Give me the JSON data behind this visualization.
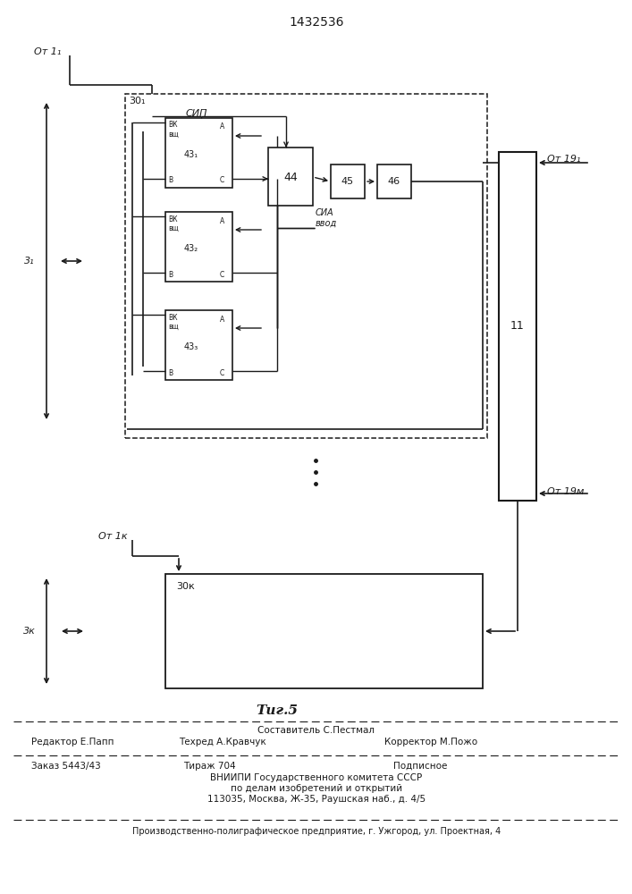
{
  "title": "1432536",
  "fig_label": "Τиг.5",
  "bg_color": "#ffffff",
  "line_color": "#1a1a1a",
  "top_label": "От 1₁",
  "label_3_1": "3₁",
  "label_30_1": "30₁",
  "label_SIP": "СИП",
  "label_SIA": "СИА",
  "label_vvod": "ввод",
  "label_44": "44",
  "label_45": "45",
  "label_46": "46",
  "label_11": "11",
  "label_19_1": "От 19₁",
  "label_19_m": "От 19м",
  "label_1k": "От 1к",
  "label_30k": "30к",
  "label_3k": "3к",
  "footer_sestavitel": "Составитель С.Пестмал",
  "footer_redaktor": "Редактор Е.Папп",
  "footer_tehred": "Техред А.Кравчук",
  "footer_korrektor": "Корректор М.Пожо",
  "footer_zakaz": "Заказ 5443/43",
  "footer_tirazh": "Тираж 704",
  "footer_podpisnoe": "Подписное",
  "footer_vniip1": "ВНИИПИ Государственного комитета СССР",
  "footer_vniip2": "по делам изобретений и открытий",
  "footer_addr": "113035, Москва, Ж-35, Раушская наб., д. 4/5",
  "footer_proizv": "Производственно-полиграфическое предприятие, г. Ужгород, ул. Проектная, 4"
}
